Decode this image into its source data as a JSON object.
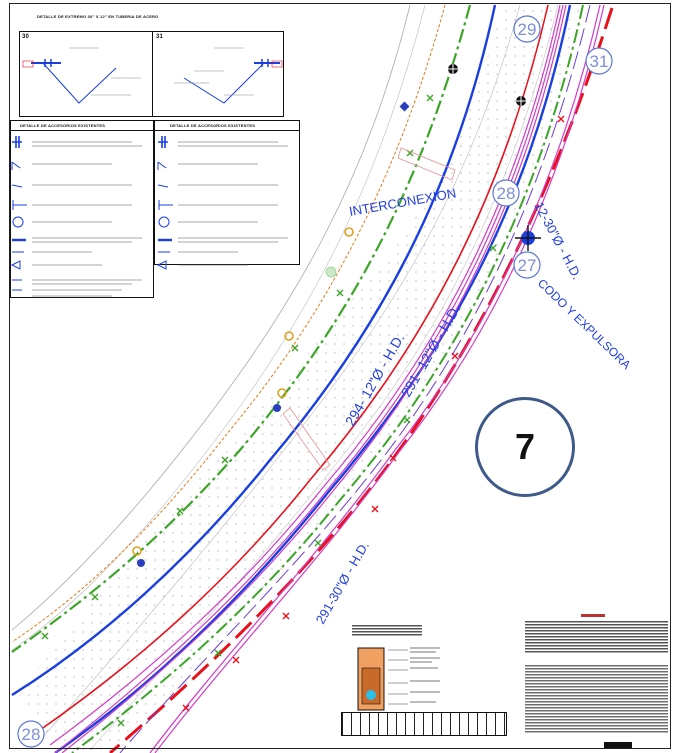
{
  "legend_top": {
    "title": "DETALLE DE EXTREMO 30\" X 12\" EN TUBERIA DE ACERO",
    "panel_left_number": "30",
    "panel_right_number": "31"
  },
  "legend_main": {
    "title_left": "DETALLE DE ACCESORIOS EXISTENTES",
    "title_right": "DETALLE DE ACCESORIOS EXISTENTES"
  },
  "labels": {
    "interconexion": "INTERCONEXION",
    "pipe_294": "294- 12\"Ø - H.D.",
    "pipe_291_12": "291- 12\"Ø - H.D.",
    "pipe_12_30": "12-30\"Ø - H.D.",
    "pipe_291_30": "291-30\"Ø - H.D.",
    "codo": "CODO Y EXPULSORA",
    "node_27": "27",
    "node_28_top": "28",
    "node_28_bottom": "28",
    "node_29": "29",
    "node_31": "31",
    "sheet_number": "7"
  },
  "colors": {
    "blue_line": "#1a3fe0",
    "red_line": "#e8101a",
    "green_line": "#3aa526",
    "magenta_line": "#d23cc8",
    "orange_dash": "#e07a18",
    "circle_stroke": "#3d5a8a",
    "bubble_stroke": "#5b76d6"
  }
}
